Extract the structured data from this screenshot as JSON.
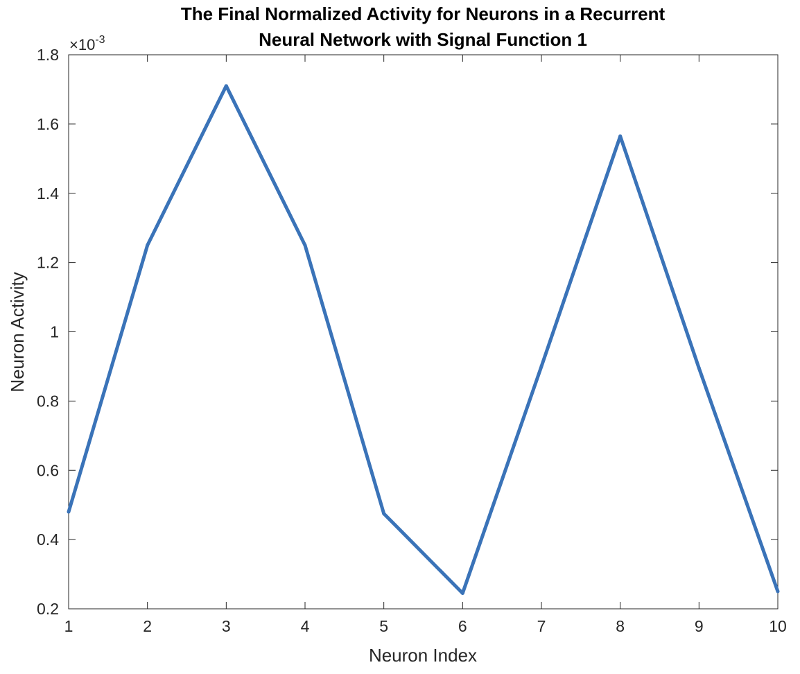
{
  "chart_data": {
    "type": "line",
    "title_lines": [
      "The Final Normalized Activity for Neurons in a Recurrent",
      "Neural Network with Signal Function 1"
    ],
    "xlabel": "Neuron Index",
    "ylabel": "Neuron Activity",
    "y_exponent_label": {
      "base": "×10",
      "power": "-3"
    },
    "xlim": [
      1,
      10
    ],
    "ylim": [
      0.2,
      1.8
    ],
    "x_ticks": [
      1,
      2,
      3,
      4,
      5,
      6,
      7,
      8,
      9,
      10
    ],
    "x_tick_labels": [
      "1",
      "2",
      "3",
      "4",
      "5",
      "6",
      "7",
      "8",
      "9",
      "10"
    ],
    "y_ticks": [
      0.2,
      0.4,
      0.6,
      0.8,
      1,
      1.2,
      1.4,
      1.6,
      1.8
    ],
    "y_tick_labels": [
      "0.2",
      "0.4",
      "0.6",
      "0.8",
      "1",
      "1.2",
      "1.4",
      "1.6",
      "1.8"
    ],
    "grid": false,
    "series": [
      {
        "color": "#3a73b8",
        "x": [
          1,
          2,
          3,
          4,
          5,
          6,
          7,
          8,
          9,
          10
        ],
        "y": [
          0.48,
          1.25,
          1.71,
          1.25,
          0.475,
          0.245,
          0.9,
          1.565,
          0.895,
          0.25
        ]
      }
    ]
  }
}
